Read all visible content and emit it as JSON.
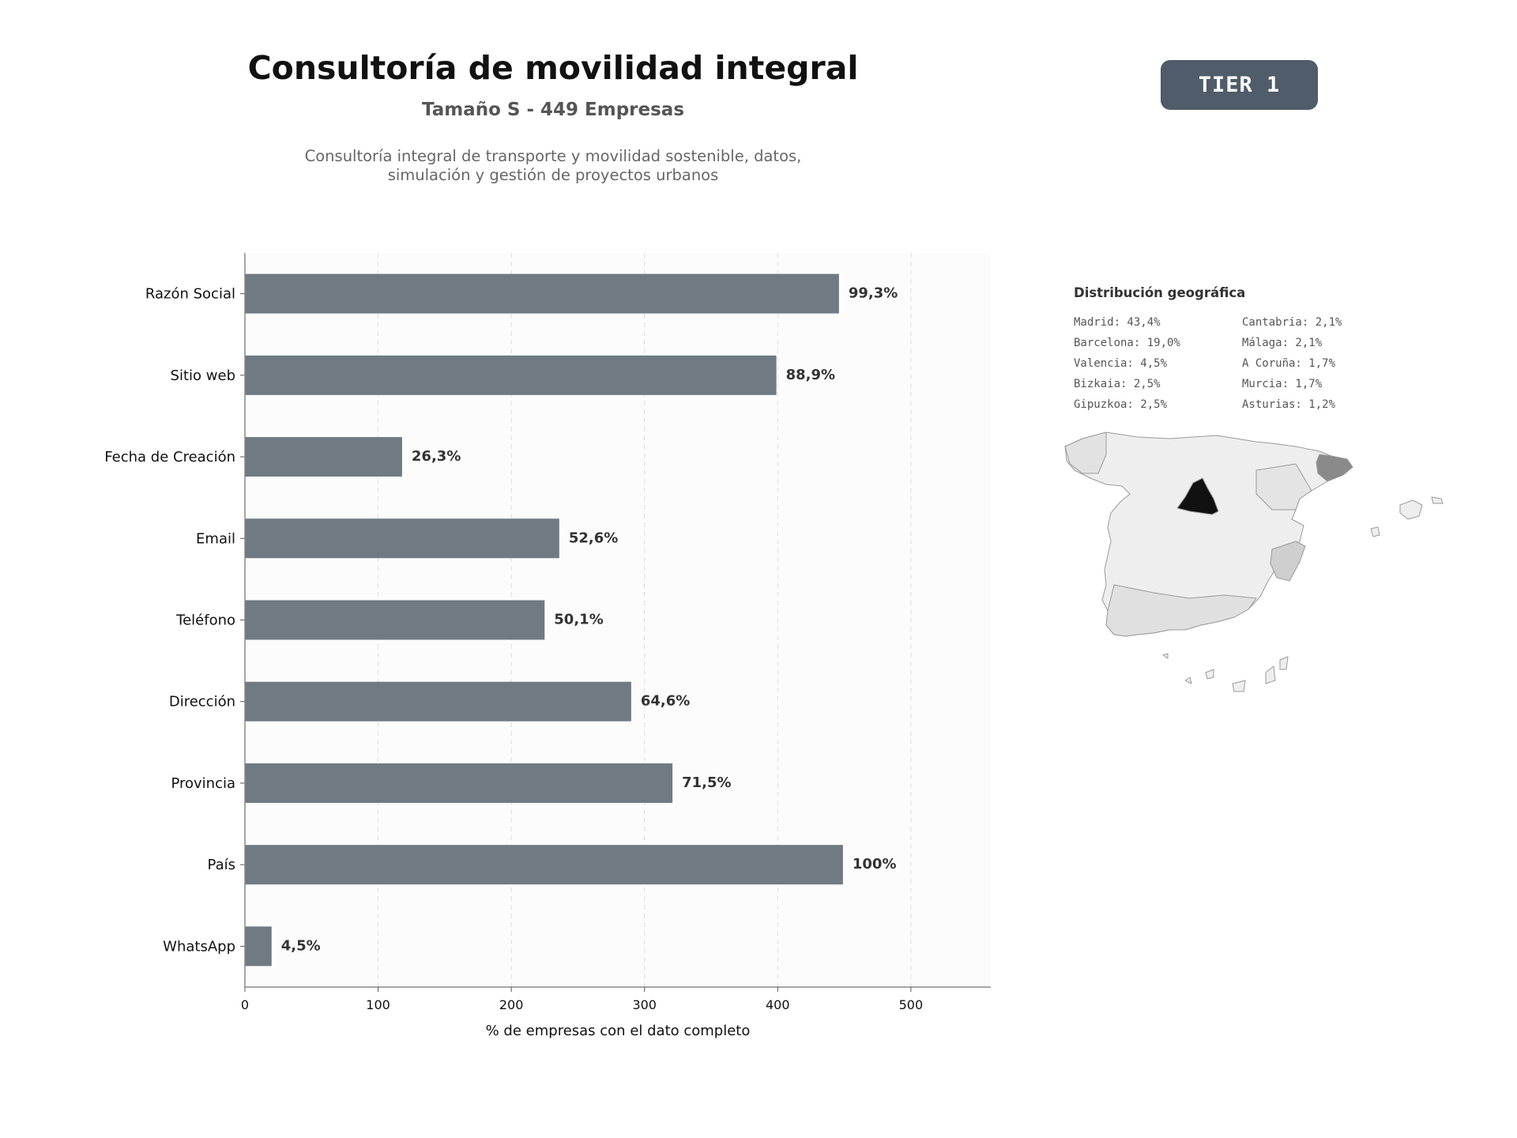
{
  "header": {
    "title": "Consultoría de movilidad integral",
    "subtitle": "Tamaño S - 449 Empresas",
    "description_line1": "Consultoría integral de transporte y movilidad sostenible, datos,",
    "description_line2": "simulación y gestión de proyectos urbanos",
    "tier_badge": "TIER 1"
  },
  "colors": {
    "bar": "#6f7a83",
    "tier_badge": "#505c69",
    "map_madrid": "#111111",
    "map_barcelona": "#8a8a8a",
    "map_valencia": "#cfcfcf",
    "map_other": "#eeeeee"
  },
  "chart_data": {
    "type": "bar",
    "orientation": "horizontal",
    "categories": [
      "Razón Social",
      "Sitio web",
      "Fecha de Creación",
      "Email",
      "Teléfono",
      "Dirección",
      "Provincia",
      "País",
      "WhatsApp"
    ],
    "values": [
      446,
      399,
      118,
      236,
      225,
      290,
      321,
      449,
      20
    ],
    "value_labels": [
      "99,3%",
      "88,9%",
      "26,3%",
      "52,6%",
      "50,1%",
      "64,6%",
      "71,5%",
      "100%",
      "4,5%"
    ],
    "xlabel": "% de empresas con el dato completo",
    "ylabel": "",
    "xlim": [
      0,
      560
    ],
    "xticks": [
      0,
      100,
      200,
      300,
      400,
      500
    ],
    "grid": true
  },
  "geo": {
    "title": "Distribución geográfica",
    "items": [
      "Madrid: 43,4%",
      "Cantabria: 2,1%",
      "Barcelona: 19,0%",
      "Málaga: 2,1%",
      "Valencia: 4,5%",
      "A Coruña: 1,7%",
      "Bizkaia: 2,5%",
      "Murcia: 1,7%",
      "Gipuzkoa: 2,5%",
      "Asturias: 1,2%"
    ]
  }
}
